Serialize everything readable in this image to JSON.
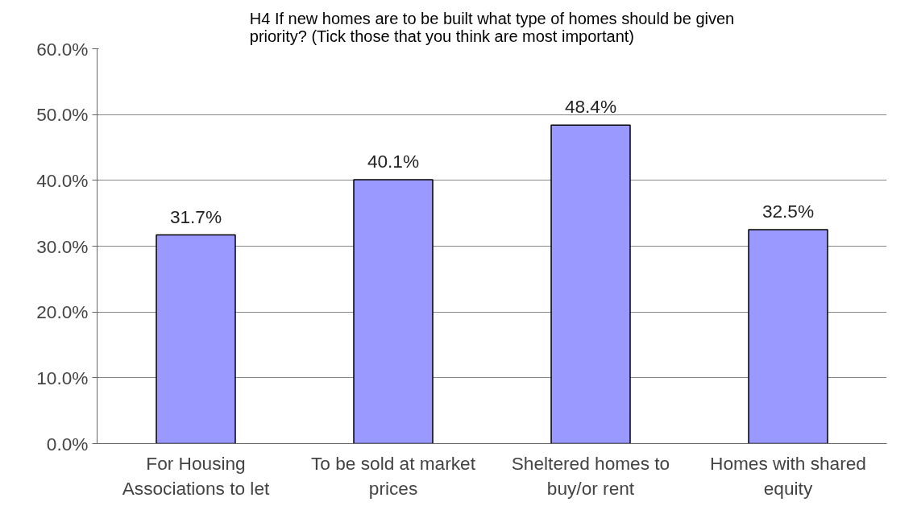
{
  "chart_data": {
    "type": "bar",
    "title": "H4 If new homes are to be built what type of homes should be given priority? (Tick those that you think are most important)",
    "categories": [
      "For Housing Associations to let",
      "To be sold at market prices",
      "Sheltered homes to buy/or rent",
      "Homes with shared equity"
    ],
    "values": [
      31.7,
      40.1,
      48.4,
      32.5
    ],
    "value_labels": [
      "31.7%",
      "40.1%",
      "48.4%",
      "32.5%"
    ],
    "color": "#9999ff",
    "ylim": [
      0,
      60
    ],
    "yticks": [
      {
        "value": 0,
        "label": "0.0%"
      },
      {
        "value": 10,
        "label": "10.0%"
      },
      {
        "value": 20,
        "label": "20.0%"
      },
      {
        "value": 30,
        "label": "30.0%"
      },
      {
        "value": 40,
        "label": "40.0%"
      },
      {
        "value": 50,
        "label": "50.0%"
      },
      {
        "value": 60,
        "label": "60.0%"
      }
    ],
    "grid": "y"
  }
}
